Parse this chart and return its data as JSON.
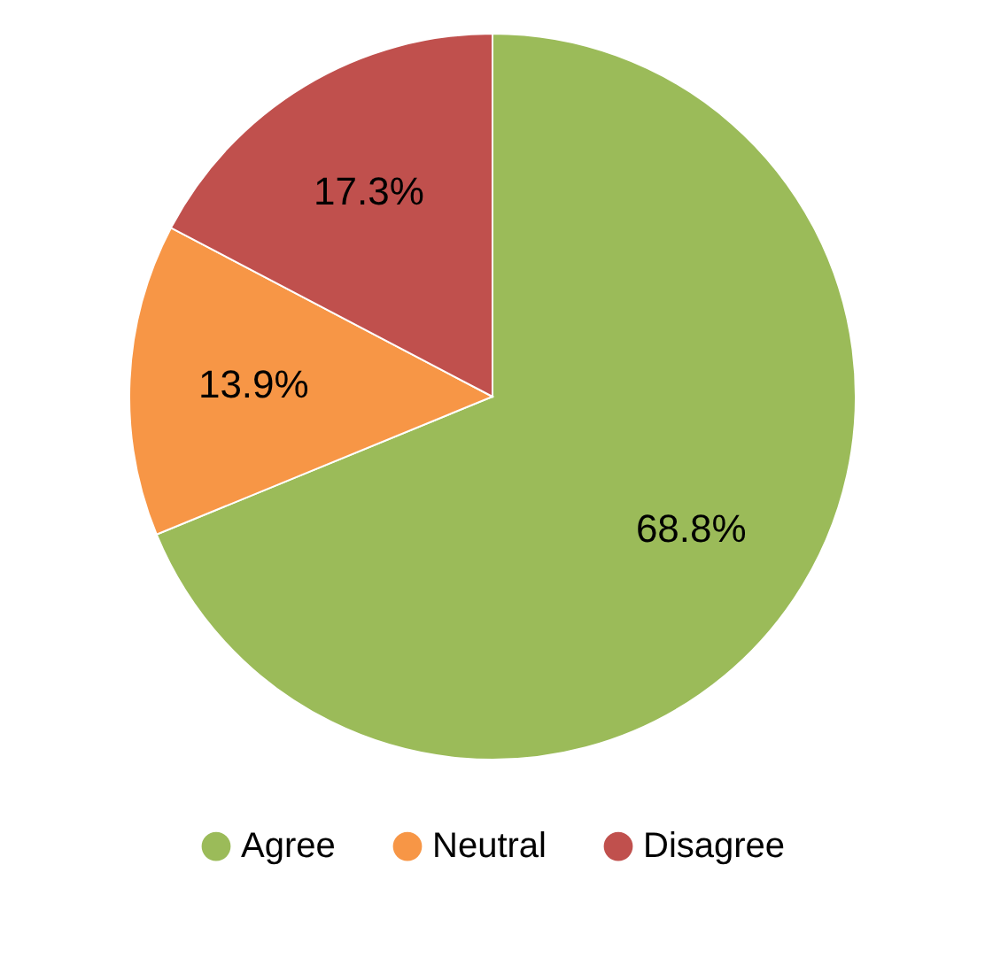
{
  "chart_data": {
    "type": "pie",
    "categories": [
      "Agree",
      "Neutral",
      "Disagree"
    ],
    "values": [
      68.8,
      13.9,
      17.3
    ],
    "colors": [
      "#9bbb59",
      "#f79646",
      "#c0504d"
    ],
    "value_labels": [
      "68.8%",
      "13.9%",
      "17.3%"
    ],
    "legend": "bottom"
  }
}
